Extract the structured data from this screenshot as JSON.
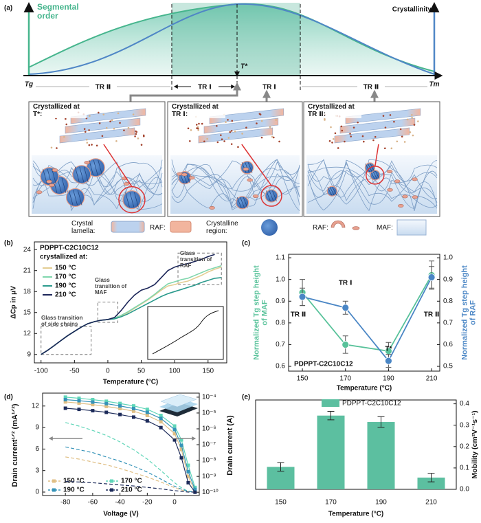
{
  "panel_labels": [
    "(a)",
    "(b)",
    "(c)",
    "(d)",
    "(e)"
  ],
  "diagram": {
    "left_label": "Segmental order",
    "right_label": "Crystallinity",
    "axis_labels": [
      "Tg",
      "T*",
      "Tm"
    ],
    "regions": [
      "TR Ⅱ",
      "TR Ⅰ",
      "TR Ⅰ",
      "TR Ⅱ"
    ],
    "boxes": [
      "Crystallized at T*:",
      "Crystallized at TR Ⅰ:",
      "Crystallized at TR Ⅱ:"
    ],
    "legend": [
      "Crystal lamella:",
      "RAF:",
      "Crystalline region:",
      "RAF:",
      "MAF:"
    ]
  },
  "chart_data": [
    {
      "type": "line",
      "title": "PDPPT-C2C10C12",
      "subtitle": "crystallized at:",
      "xlabel": "Temperature (°C)",
      "ylabel": "ΔCp in μV",
      "annotations": [
        "Glass transition of side chains",
        "Glass transition of MAF",
        "Glass transition of RAF"
      ],
      "x": [
        -100,
        -90,
        -80,
        -70,
        -60,
        -50,
        -40,
        -30,
        -20,
        -10,
        0,
        10,
        20,
        30,
        40,
        50,
        60,
        70,
        80,
        90,
        100,
        110,
        120,
        130,
        140,
        150,
        160,
        170
      ],
      "series": [
        {
          "name": "150 °C",
          "color": "#e3cd92",
          "values": [
            9,
            9.6,
            10.3,
            11,
            11.7,
            12.3,
            12.9,
            13.4,
            13.7,
            13.9,
            14.0,
            14.2,
            14.5,
            15,
            15.6,
            16.2,
            16.8,
            17.5,
            18.2,
            18.8,
            19,
            19.3,
            19.5,
            19.9,
            20.3,
            20.8,
            21.2,
            21.5
          ]
        },
        {
          "name": "170 °C",
          "color": "#7fd6ad",
          "values": [
            9,
            9.6,
            10.3,
            11,
            11.7,
            12.3,
            12.9,
            13.4,
            13.7,
            13.9,
            14.0,
            14.2,
            14.6,
            15.1,
            15.7,
            16.3,
            16.9,
            17.6,
            18.4,
            19.1,
            19.4,
            19.7,
            19.9,
            20.3,
            20.7,
            21.1,
            21.4,
            21.7
          ]
        },
        {
          "name": "190 °C",
          "color": "#2a9a8c",
          "values": [
            9,
            9.6,
            10.3,
            11,
            11.7,
            12.3,
            12.9,
            13.4,
            13.7,
            13.9,
            14.0,
            14.1,
            14.4,
            14.8,
            15.3,
            15.8,
            16.3,
            16.8,
            17.3,
            17.7,
            18,
            18.3,
            18.6,
            18.9,
            19.3,
            19.6,
            19.9,
            20
          ]
        },
        {
          "name": "210 °C",
          "color": "#1b2558",
          "values": [
            9,
            9.6,
            10.3,
            11,
            11.7,
            12.3,
            12.9,
            13.4,
            13.7,
            13.9,
            14.0,
            14.3,
            15.3,
            16.5,
            17.5,
            18.2,
            18.5,
            19,
            20,
            21,
            21.5,
            21.8,
            22,
            22.3,
            22.6,
            23,
            23.3,
            null
          ]
        }
      ],
      "xlim": [
        -110,
        178
      ],
      "ylim": [
        7.8,
        25.1
      ],
      "xticks": [
        -100,
        -50,
        0,
        50,
        100,
        150
      ],
      "yticks": [
        9,
        12,
        15,
        18,
        21,
        24
      ]
    },
    {
      "type": "errorbar-line",
      "text": "PDPPT-C2C10C12",
      "xlabel": "Temperature (°C)",
      "ylabel": "Normalized Tg step height of MAF",
      "y2label": "Normalized Tg step height of RAF",
      "point_labels": [
        "TR Ⅱ",
        "TR Ⅰ",
        "T*",
        "TR Ⅱ"
      ],
      "x": [
        150,
        170,
        190,
        210
      ],
      "series": [
        {
          "color": "#58c29a",
          "values": [
            0.94,
            0.7,
            0.67,
            1.02
          ],
          "errors": [
            0.06,
            0.04,
            0.04,
            0.065
          ]
        },
        {
          "color": "#4a86c5",
          "axis": "y2",
          "values": [
            0.82,
            0.77,
            0.525,
            0.91
          ],
          "errors": [
            0.04,
            0.03,
            0.03,
            0.05
          ]
        }
      ],
      "xlim": [
        143.6,
        213.8
      ],
      "ylim": [
        0.578,
        1.116
      ],
      "y2lim": [
        0.478,
        1.016
      ],
      "xticks": [
        150,
        170,
        190,
        210
      ],
      "yticks": [
        0.6,
        0.7,
        0.8,
        0.9,
        {
          "value": 1,
          "label": "1.0"
        },
        1.1
      ],
      "y2ticks": [
        0.5,
        0.6,
        0.7,
        0.8,
        0.9,
        {
          "value": 1,
          "label": "1.0"
        }
      ]
    },
    {
      "type": "transfer",
      "xlabel": "Voltage (V)",
      "ylabel": "Drain current¹ᐟ² (mA¹ᐟ²)",
      "y2label": "Drain current (A)",
      "y2log": true,
      "x": [
        -80,
        -70,
        -60,
        -50,
        -40,
        -30,
        -20,
        -10,
        0,
        5,
        10,
        15
      ],
      "series": [
        {
          "name": "150 °C",
          "color": "#e0bf85",
          "values": [
            4.9,
            4.6,
            4.2,
            3.8,
            3.3,
            2.7,
            2.1,
            1.4,
            0.6,
            0.3,
            0.05,
            0
          ],
          "values_y2": [
            5e-05,
            4.2e-05,
            3.4e-05,
            2.6e-05,
            1.9e-05,
            1.3e-05,
            7e-06,
            2.8e-06,
            5e-07,
            5e-08,
            1e-09,
            1.2e-10
          ]
        },
        {
          "name": "170 °C",
          "color": "#5fd6b8",
          "values": [
            9.7,
            9.2,
            8.6,
            7.9,
            7.0,
            5.9,
            4.6,
            3.0,
            1.3,
            0.6,
            0.1,
            0
          ],
          "values_y2": [
            0.0001,
            8.5e-05,
            7e-05,
            5.5e-05,
            4e-05,
            2.8e-05,
            1.7e-05,
            7e-06,
            1.5e-06,
            2e-07,
            5e-09,
            2e-10
          ]
        },
        {
          "name": "190 °C",
          "color": "#3593b8",
          "values": [
            6.3,
            5.9,
            5.5,
            4.9,
            4.3,
            3.6,
            2.8,
            1.8,
            0.8,
            0.4,
            0.1,
            0
          ],
          "values_y2": [
            7e-05,
            6e-05,
            4.9e-05,
            3.9e-05,
            2.8e-05,
            1.9e-05,
            1.1e-05,
            4.5e-06,
            9e-07,
            9e-08,
            2e-09,
            1.5e-10
          ]
        },
        {
          "name": "210 °C",
          "color": "#1d2b5a",
          "values": [
            1.5,
            1.4,
            1.3,
            1.15,
            1.0,
            0.85,
            0.65,
            0.45,
            0.2,
            0.1,
            0,
            0
          ],
          "values_y2": [
            2e-05,
            1.7e-05,
            1.4e-05,
            1.1e-05,
            8e-06,
            5.5e-06,
            3.2e-06,
            1.2e-06,
            2e-07,
            1.5e-08,
            4e-10,
            1e-10
          ]
        }
      ],
      "xlim": [
        -96.7,
        18.1
      ],
      "ylim": [
        -0.48,
        13.8
      ],
      "y2lim": [
        6.2e-11,
        0.00018
      ],
      "xticks": [
        -80,
        -60,
        -40,
        -20,
        0
      ],
      "yticks": [
        0,
        3,
        6,
        9,
        12
      ],
      "y2ticks": [
        {
          "value": 1e-10,
          "label": "10⁻¹⁰"
        },
        {
          "value": 1e-09,
          "label": "10⁻⁹"
        },
        {
          "value": 1e-08,
          "label": "10⁻⁸"
        },
        {
          "value": 1e-07,
          "label": "10⁻⁷"
        },
        {
          "value": 1e-06,
          "label": "10⁻⁶"
        },
        {
          "value": 1e-05,
          "label": "10⁻⁵"
        },
        {
          "value": 0.0001,
          "label": "10⁻⁴"
        }
      ]
    },
    {
      "type": "bar",
      "legend": "PDPPT-C2C10C12",
      "xlabel": "Temperature (°C)",
      "ylabel": "Mobility (cm²V⁻¹s⁻¹)",
      "categories": [
        "150",
        "170",
        "190",
        "210"
      ],
      "values": [
        0.105,
        0.345,
        0.315,
        0.055
      ],
      "errors": [
        0.02,
        0.02,
        0.025,
        0.02
      ],
      "color": "#5cbfa0",
      "ylim": [
        0,
        0.418
      ],
      "yticks": [
        {
          "value": 0,
          "label": "0.0"
        },
        0.1,
        0.2,
        0.3,
        0.4
      ]
    }
  ]
}
